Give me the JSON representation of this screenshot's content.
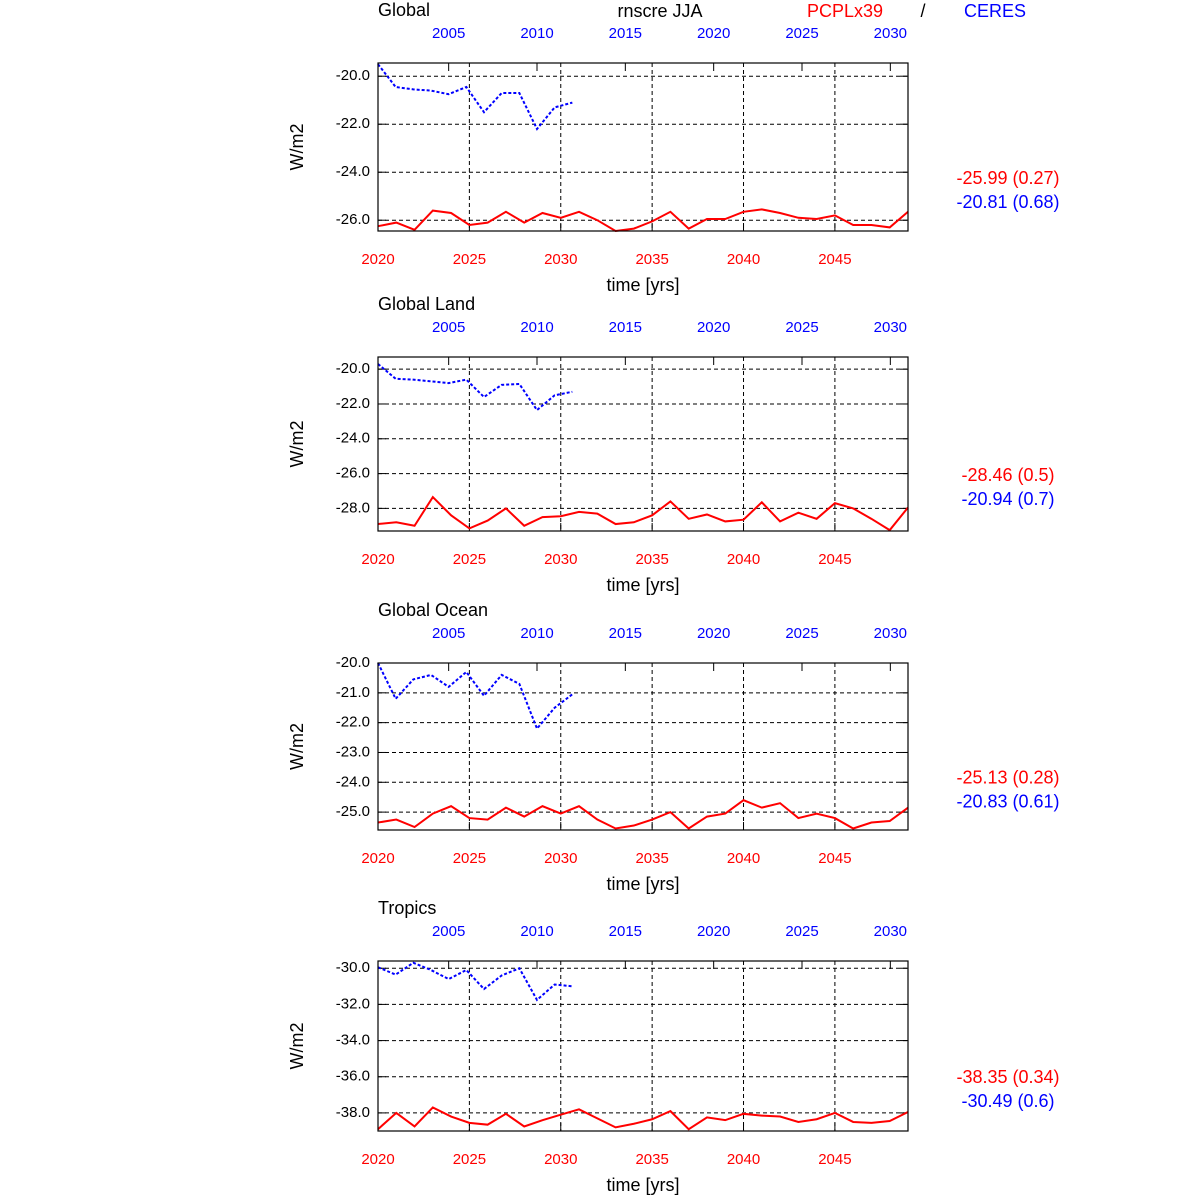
{
  "title": "rnscre JJA",
  "legend": [
    {
      "name": "PCPLx39",
      "color": "#ff0000"
    },
    {
      "name": "CERES",
      "color": "#0000ff"
    }
  ],
  "legend_separator": "/",
  "chart_data": [
    {
      "type": "line",
      "title": "Global",
      "ylabel": "W/m2",
      "xlabel": "time [yrs]",
      "grid": true,
      "xlim": [
        2020,
        2049
      ],
      "xticks": [
        2020,
        2025,
        2030,
        2035,
        2040,
        2045
      ],
      "x2lim": [
        2001,
        2031
      ],
      "x2ticks": [
        2005,
        2010,
        2015,
        2020,
        2025,
        2030
      ],
      "ylim": [
        -26.45,
        -19.45
      ],
      "yticks": [
        {
          "value": -26,
          "label": "-26.0"
        },
        {
          "value": -24,
          "label": "-24.0"
        },
        {
          "value": -22,
          "label": "-22.0"
        },
        {
          "value": -20,
          "label": "-20.0"
        }
      ],
      "series": [
        {
          "color": "#ff0000",
          "x": [
            2020,
            2021,
            2022,
            2023,
            2024,
            2025,
            2026,
            2027,
            2028,
            2029,
            2030,
            2031,
            2032,
            2033,
            2034,
            2035,
            2036,
            2037,
            2038,
            2039,
            2040,
            2041,
            2042,
            2043,
            2044,
            2045,
            2046,
            2047,
            2048,
            2049
          ],
          "values": [
            -26.25,
            -26.1,
            -26.4,
            -25.6,
            -25.7,
            -26.2,
            -26.1,
            -25.65,
            -26.1,
            -25.7,
            -25.9,
            -25.65,
            -26.0,
            -26.45,
            -26.35,
            -26.05,
            -25.65,
            -26.35,
            -25.95,
            -25.95,
            -25.65,
            -25.55,
            -25.7,
            -25.9,
            -25.95,
            -25.8,
            -26.2,
            -26.2,
            -26.3,
            -25.65
          ]
        },
        {
          "color": "#0000ff",
          "axis": "x2",
          "dashed": true,
          "x": [
            2001,
            2002,
            2003,
            2004,
            2005,
            2006,
            2007,
            2008,
            2009,
            2010,
            2011,
            2012
          ],
          "values": [
            -19.5,
            -20.45,
            -20.55,
            -20.6,
            -20.75,
            -20.45,
            -21.5,
            -20.7,
            -20.7,
            -22.2,
            -21.3,
            -21.1
          ]
        }
      ],
      "stats": [
        {
          "text": "-25.99 (0.27)",
          "color": "#ff0000"
        },
        {
          "text": "-20.81 (0.68)",
          "color": "#0000ff"
        }
      ]
    },
    {
      "type": "line",
      "title": "Global Land",
      "ylabel": "W/m2",
      "xlabel": "time [yrs]",
      "grid": true,
      "xlim": [
        2020,
        2049
      ],
      "xticks": [
        2020,
        2025,
        2030,
        2035,
        2040,
        2045
      ],
      "x2lim": [
        2001,
        2031
      ],
      "x2ticks": [
        2005,
        2010,
        2015,
        2020,
        2025,
        2030
      ],
      "ylim": [
        -29.3,
        -19.3
      ],
      "yticks": [
        {
          "value": -28,
          "label": "-28.0"
        },
        {
          "value": -26,
          "label": "-26.0"
        },
        {
          "value": -24,
          "label": "-24.0"
        },
        {
          "value": -22,
          "label": "-22.0"
        },
        {
          "value": -20,
          "label": "-20.0"
        }
      ],
      "series": [
        {
          "color": "#ff0000",
          "x": [
            2020,
            2021,
            2022,
            2023,
            2024,
            2025,
            2026,
            2027,
            2028,
            2029,
            2030,
            2031,
            2032,
            2033,
            2034,
            2035,
            2036,
            2037,
            2038,
            2039,
            2040,
            2041,
            2042,
            2043,
            2044,
            2045,
            2046,
            2047,
            2048,
            2049
          ],
          "values": [
            -28.9,
            -28.8,
            -29.0,
            -27.35,
            -28.4,
            -29.15,
            -28.7,
            -28.0,
            -29.0,
            -28.5,
            -28.45,
            -28.2,
            -28.3,
            -28.9,
            -28.8,
            -28.4,
            -27.6,
            -28.6,
            -28.35,
            -28.75,
            -28.65,
            -27.65,
            -28.75,
            -28.25,
            -28.6,
            -27.7,
            -28.0,
            -28.6,
            -29.25,
            -27.95
          ]
        },
        {
          "color": "#0000ff",
          "axis": "x2",
          "dashed": true,
          "x": [
            2001,
            2002,
            2003,
            2004,
            2005,
            2006,
            2007,
            2008,
            2009,
            2010,
            2011,
            2012
          ],
          "values": [
            -19.7,
            -20.55,
            -20.6,
            -20.7,
            -20.8,
            -20.6,
            -21.6,
            -20.9,
            -20.85,
            -22.35,
            -21.5,
            -21.3
          ]
        }
      ],
      "stats": [
        {
          "text": "-28.46 (0.5)",
          "color": "#ff0000"
        },
        {
          "text": "-20.94 (0.7)",
          "color": "#0000ff"
        }
      ]
    },
    {
      "type": "line",
      "title": "Global Ocean",
      "ylabel": "W/m2",
      "xlabel": "time [yrs]",
      "grid": true,
      "xlim": [
        2020,
        2049
      ],
      "xticks": [
        2020,
        2025,
        2030,
        2035,
        2040,
        2045
      ],
      "x2lim": [
        2001,
        2031
      ],
      "x2ticks": [
        2005,
        2010,
        2015,
        2020,
        2025,
        2030
      ],
      "ylim": [
        -25.6,
        -20.0
      ],
      "yticks": [
        {
          "value": -25,
          "label": "-25.0"
        },
        {
          "value": -24,
          "label": "-24.0"
        },
        {
          "value": -23,
          "label": "-23.0"
        },
        {
          "value": -22,
          "label": "-22.0"
        },
        {
          "value": -21,
          "label": "-21.0"
        },
        {
          "value": -20,
          "label": "-20.0"
        }
      ],
      "series": [
        {
          "color": "#ff0000",
          "x": [
            2020,
            2021,
            2022,
            2023,
            2024,
            2025,
            2026,
            2027,
            2028,
            2029,
            2030,
            2031,
            2032,
            2033,
            2034,
            2035,
            2036,
            2037,
            2038,
            2039,
            2040,
            2041,
            2042,
            2043,
            2044,
            2045,
            2046,
            2047,
            2048,
            2049
          ],
          "values": [
            -25.35,
            -25.25,
            -25.5,
            -25.05,
            -24.8,
            -25.2,
            -25.25,
            -24.85,
            -25.15,
            -24.8,
            -25.05,
            -24.8,
            -25.25,
            -25.55,
            -25.45,
            -25.25,
            -25.0,
            -25.55,
            -25.15,
            -25.05,
            -24.6,
            -24.85,
            -24.7,
            -25.2,
            -25.05,
            -25.2,
            -25.55,
            -25.35,
            -25.3,
            -24.85
          ]
        },
        {
          "color": "#0000ff",
          "axis": "x2",
          "dashed": true,
          "x": [
            2001,
            2002,
            2003,
            2004,
            2005,
            2006,
            2007,
            2008,
            2009,
            2010,
            2011,
            2012
          ],
          "values": [
            -20.0,
            -21.2,
            -20.55,
            -20.4,
            -20.8,
            -20.3,
            -21.1,
            -20.4,
            -20.7,
            -22.2,
            -21.5,
            -21.05
          ]
        }
      ],
      "stats": [
        {
          "text": "-25.13 (0.28)",
          "color": "#ff0000"
        },
        {
          "text": "-20.83 (0.61)",
          "color": "#0000ff"
        }
      ]
    },
    {
      "type": "line",
      "title": "Tropics",
      "ylabel": "W/m2",
      "xlabel": "time [yrs]",
      "grid": true,
      "xlim": [
        2020,
        2049
      ],
      "xticks": [
        2020,
        2025,
        2030,
        2035,
        2040,
        2045
      ],
      "x2lim": [
        2001,
        2031
      ],
      "x2ticks": [
        2005,
        2010,
        2015,
        2020,
        2025,
        2030
      ],
      "ylim": [
        -39.0,
        -29.6
      ],
      "yticks": [
        {
          "value": -38,
          "label": "-38.0"
        },
        {
          "value": -36,
          "label": "-36.0"
        },
        {
          "value": -34,
          "label": "-34.0"
        },
        {
          "value": -32,
          "label": "-32.0"
        },
        {
          "value": -30,
          "label": "-30.0"
        }
      ],
      "series": [
        {
          "color": "#ff0000",
          "x": [
            2020,
            2021,
            2022,
            2023,
            2024,
            2025,
            2026,
            2027,
            2028,
            2029,
            2030,
            2031,
            2032,
            2033,
            2034,
            2035,
            2036,
            2037,
            2038,
            2039,
            2040,
            2041,
            2042,
            2043,
            2044,
            2045,
            2046,
            2047,
            2048,
            2049
          ],
          "values": [
            -38.9,
            -38.0,
            -38.75,
            -37.7,
            -38.2,
            -38.55,
            -38.65,
            -38.05,
            -38.75,
            -38.4,
            -38.1,
            -37.8,
            -38.3,
            -38.8,
            -38.6,
            -38.35,
            -37.9,
            -38.9,
            -38.25,
            -38.4,
            -38.05,
            -38.15,
            -38.2,
            -38.5,
            -38.35,
            -38.0,
            -38.5,
            -38.55,
            -38.45,
            -37.95
          ]
        },
        {
          "color": "#0000ff",
          "axis": "x2",
          "dashed": true,
          "x": [
            2001,
            2002,
            2003,
            2004,
            2005,
            2006,
            2007,
            2008,
            2009,
            2010,
            2011,
            2012
          ],
          "values": [
            -29.95,
            -30.35,
            -29.7,
            -30.1,
            -30.6,
            -30.1,
            -31.15,
            -30.4,
            -30.0,
            -31.75,
            -30.9,
            -31.0
          ]
        }
      ],
      "stats": [
        {
          "text": "-38.35 (0.34)",
          "color": "#ff0000"
        },
        {
          "text": "-30.49 (0.6)",
          "color": "#0000ff"
        }
      ]
    }
  ]
}
